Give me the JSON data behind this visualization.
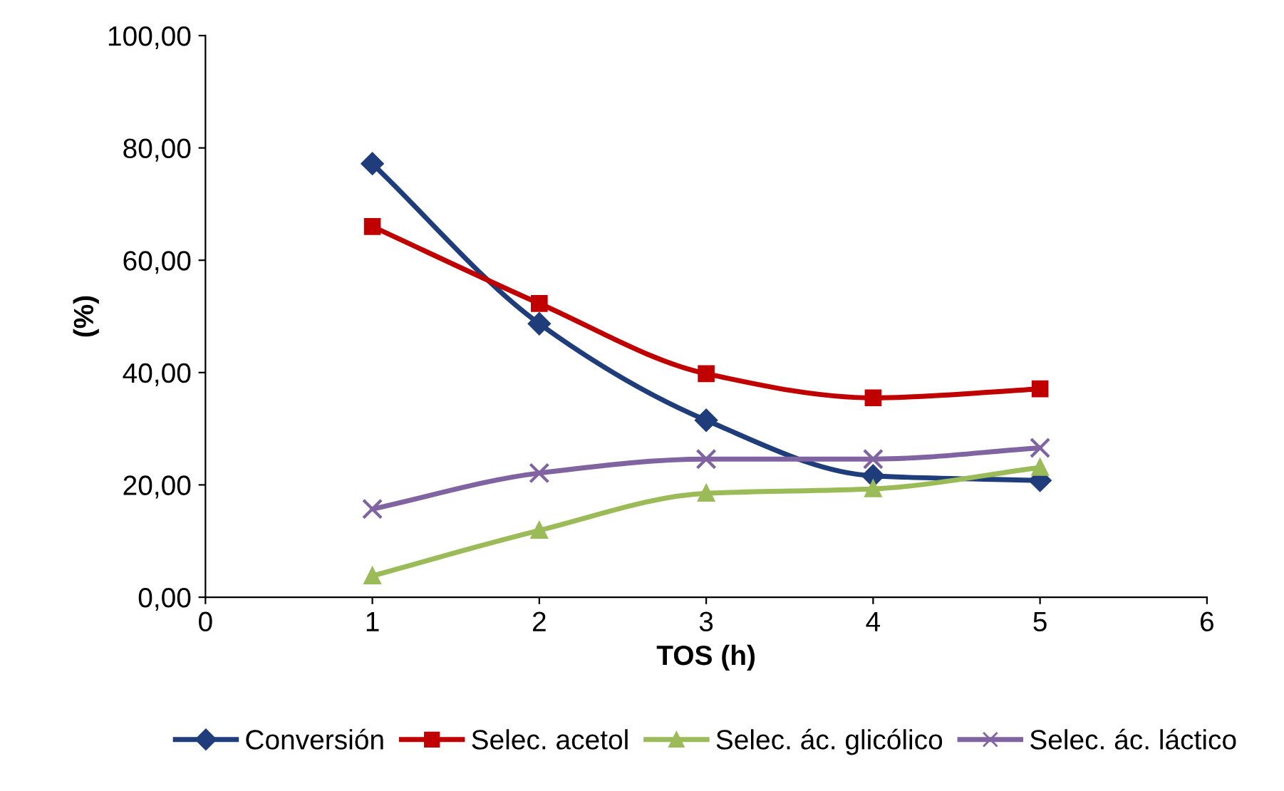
{
  "chart_data": {
    "type": "line",
    "xlabel": "TOS (h)",
    "ylabel": "(%)",
    "x": [
      1,
      2,
      3,
      4,
      5
    ],
    "series": [
      {
        "name": "Conversión",
        "color": "#1f3d7a",
        "marker": "diamond",
        "values": [
          77.2,
          48.7,
          31.5,
          21.6,
          20.8
        ]
      },
      {
        "name": "Selec. acetol",
        "color": "#c00000",
        "marker": "square",
        "values": [
          66.0,
          52.3,
          39.8,
          35.5,
          37.1
        ]
      },
      {
        "name": "Selec. ác. glicólico",
        "color": "#9bbb59",
        "marker": "triangle",
        "values": [
          3.8,
          11.9,
          18.5,
          19.3,
          23.1
        ]
      },
      {
        "name": "Selec. ác. láctico",
        "color": "#8064a2",
        "marker": "cross",
        "values": [
          15.7,
          22.1,
          24.6,
          24.6,
          26.6
        ]
      }
    ],
    "xlim": [
      0,
      6
    ],
    "xticks": [
      0,
      1,
      2,
      3,
      4,
      5,
      6
    ],
    "ylim": [
      0,
      100
    ],
    "yticks": [
      {
        "value": 0,
        "label": "0,00"
      },
      {
        "value": 20,
        "label": "20,00"
      },
      {
        "value": 40,
        "label": "40,00"
      },
      {
        "value": 60,
        "label": "60,00"
      },
      {
        "value": 80,
        "label": "80,00"
      },
      {
        "value": 100,
        "label": "100,00"
      }
    ],
    "grid": false,
    "legend": "bottom",
    "line_style": "solid"
  }
}
